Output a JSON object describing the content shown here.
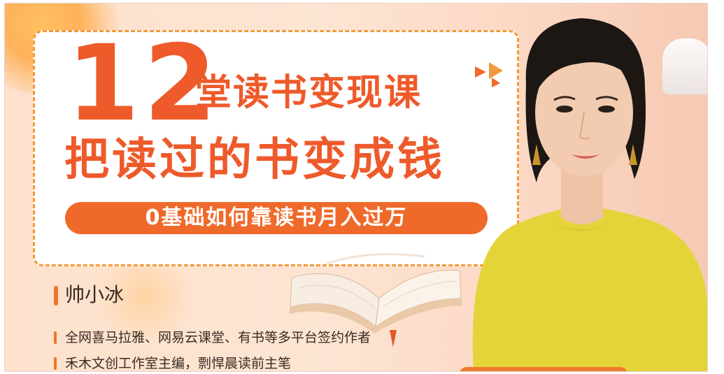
{
  "poster": {
    "course_number": "12",
    "title_line1": "堂读书变现课",
    "title_line2": "把读过的书变成钱",
    "subtitle": "0基础如何靠读书月入过万",
    "author": {
      "name": "帅小冰",
      "credentials": [
        "全网喜马拉雅、网易云课堂、有书等多平台签约作者",
        "禾木文创工作室主编，剽悍晨读前主笔"
      ]
    },
    "colors": {
      "accent": "#ee5a2a",
      "pill": "#ef6a2a",
      "border": "#f39a3c",
      "background": "#fde1cc",
      "shirt": "#e4d43a"
    },
    "illustrations": [
      "open-book",
      "woman-portrait",
      "play-triangles"
    ]
  }
}
